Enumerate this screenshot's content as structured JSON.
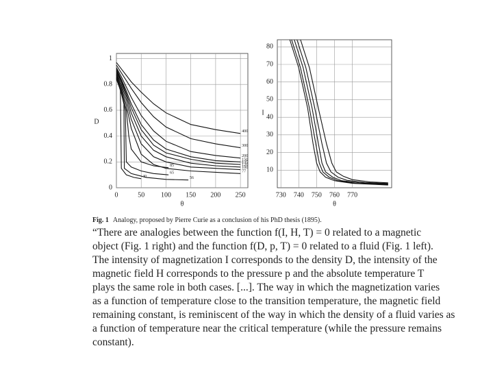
{
  "chart_data": [
    {
      "type": "line",
      "ylabel": "D",
      "xlabel": "θ",
      "xlim": [
        0,
        265
      ],
      "ylim": [
        0,
        1.04
      ],
      "xticks": [
        0,
        50,
        100,
        150,
        200,
        250
      ],
      "yticks": [
        0,
        0.2,
        0.4,
        0.6,
        0.8,
        1
      ],
      "grid": true,
      "color": "#111111",
      "series": [
        {
          "name": "400",
          "x": [
            0,
            10,
            20,
            30,
            50,
            75,
            100,
            150,
            200,
            250
          ],
          "values": [
            0.97,
            0.92,
            0.87,
            0.82,
            0.74,
            0.65,
            0.58,
            0.49,
            0.45,
            0.42
          ]
        },
        {
          "name": "300",
          "x": [
            0,
            10,
            20,
            30,
            50,
            75,
            100,
            150,
            200,
            250
          ],
          "values": [
            0.95,
            0.89,
            0.83,
            0.77,
            0.66,
            0.55,
            0.47,
            0.38,
            0.34,
            0.31
          ]
        },
        {
          "name": "200",
          "x": [
            0,
            10,
            20,
            30,
            50,
            75,
            100,
            150,
            200,
            250
          ],
          "values": [
            0.93,
            0.86,
            0.78,
            0.7,
            0.56,
            0.44,
            0.36,
            0.28,
            0.25,
            0.23
          ]
        },
        {
          "name": "150",
          "x": [
            0,
            10,
            20,
            30,
            50,
            75,
            100,
            150,
            200,
            250
          ],
          "values": [
            0.92,
            0.84,
            0.75,
            0.65,
            0.49,
            0.37,
            0.3,
            0.24,
            0.21,
            0.2
          ]
        },
        {
          "name": "135",
          "x": [
            0,
            10,
            20,
            30,
            50,
            75,
            100,
            150,
            200,
            250
          ],
          "values": [
            0.91,
            0.83,
            0.73,
            0.62,
            0.45,
            0.33,
            0.27,
            0.22,
            0.19,
            0.18
          ]
        },
        {
          "name": "120",
          "x": [
            0,
            10,
            20,
            30,
            50,
            75,
            100,
            150,
            200,
            250
          ],
          "values": [
            0.9,
            0.82,
            0.71,
            0.58,
            0.4,
            0.29,
            0.24,
            0.19,
            0.17,
            0.16
          ]
        },
        {
          "name": "100",
          "x": [
            0,
            10,
            20,
            30,
            50,
            75,
            100,
            150,
            200,
            250
          ],
          "values": [
            0.89,
            0.8,
            0.68,
            0.53,
            0.34,
            0.24,
            0.2,
            0.16,
            0.15,
            0.14
          ]
        },
        {
          "name": "77",
          "x": [
            0,
            10,
            20,
            30,
            50,
            75,
            100,
            150,
            200,
            250
          ],
          "values": [
            0.88,
            0.78,
            0.64,
            0.46,
            0.26,
            0.18,
            0.15,
            0.13,
            0.12,
            0.11
          ]
        },
        {
          "name": "85",
          "x": [
            0,
            10,
            20,
            25,
            30,
            50,
            75,
            105
          ],
          "values": [
            0.87,
            0.76,
            0.6,
            0.4,
            0.3,
            0.2,
            0.17,
            0.155
          ]
        },
        {
          "name": "65",
          "x": [
            0,
            10,
            18,
            20,
            30,
            50,
            75,
            105
          ],
          "values": [
            0.86,
            0.74,
            0.6,
            0.2,
            0.16,
            0.13,
            0.11,
            0.1
          ]
        },
        {
          "name": "56",
          "x": [
            0,
            10,
            15,
            16,
            30,
            60,
            100,
            145
          ],
          "values": [
            0.85,
            0.73,
            0.65,
            0.15,
            0.11,
            0.08,
            0.065,
            0.06
          ]
        },
        {
          "name": "40",
          "x": [
            0,
            8,
            10,
            20,
            35,
            50
          ],
          "values": [
            0.84,
            0.76,
            0.15,
            0.1,
            0.08,
            0.07
          ]
        }
      ]
    },
    {
      "type": "line",
      "ylabel": "I",
      "xlabel": "θ",
      "xlim": [
        728,
        792
      ],
      "ylim": [
        0,
        84
      ],
      "xticks": [
        730,
        740,
        750,
        760,
        770
      ],
      "yticks": [
        10,
        20,
        30,
        40,
        50,
        60,
        70,
        80
      ],
      "grid": true,
      "color": "#111111",
      "series": [
        {
          "x": [
            735,
            740,
            745,
            748,
            750,
            752,
            755,
            760,
            770,
            790
          ],
          "values": [
            84,
            68,
            45,
            25,
            14,
            9,
            6,
            4,
            2.5,
            1.5
          ]
        },
        {
          "x": [
            736,
            741,
            746,
            749.5,
            751.5,
            753.5,
            757,
            762,
            772,
            790
          ],
          "values": [
            84,
            68,
            45,
            25,
            14,
            9,
            6,
            4,
            2.5,
            1.8
          ]
        },
        {
          "x": [
            737.5,
            742.5,
            747.5,
            751,
            753,
            755,
            759,
            764,
            774,
            790
          ],
          "values": [
            84,
            68,
            45,
            25,
            14,
            9,
            6,
            4,
            2.8,
            2.1
          ]
        },
        {
          "x": [
            739,
            744,
            749,
            753,
            755.5,
            758,
            762,
            767,
            777,
            790
          ],
          "values": [
            84,
            68,
            45,
            25,
            14,
            9,
            6,
            4.2,
            3,
            2.4
          ]
        },
        {
          "x": [
            741,
            746,
            751,
            755.5,
            758.5,
            761,
            765,
            770,
            780,
            790
          ],
          "values": [
            84,
            68,
            45,
            25,
            14,
            9,
            6.5,
            4.6,
            3.3,
            2.8
          ]
        }
      ]
    }
  ],
  "caption": {
    "label": "Fig. 1",
    "text": "Analogy, proposed by Pierre Curie as a conclusion of his PhD thesis (1895)."
  },
  "quote": [
    "“There are analogies between the function f(I, H, T) = 0 related to a magnetic",
    "object (Fig. 1 right) and the function f(D, p, T) = 0 related to a fluid (Fig. 1 left).",
    "The intensity of magnetization I corresponds to the density D, the intensity of the",
    "magnetic field H corresponds to the pressure p and the absolute temperature T",
    "plays the same role in both cases. [...]. The way in which the magnetization varies",
    "as a function of temperature close to the transition temperature, the magnetic field",
    "remaining constant, is reminiscent of the way in which the density of a fluid varies as",
    "a function of temperature near the critical temperature (while the pressure remains",
    "constant)."
  ]
}
